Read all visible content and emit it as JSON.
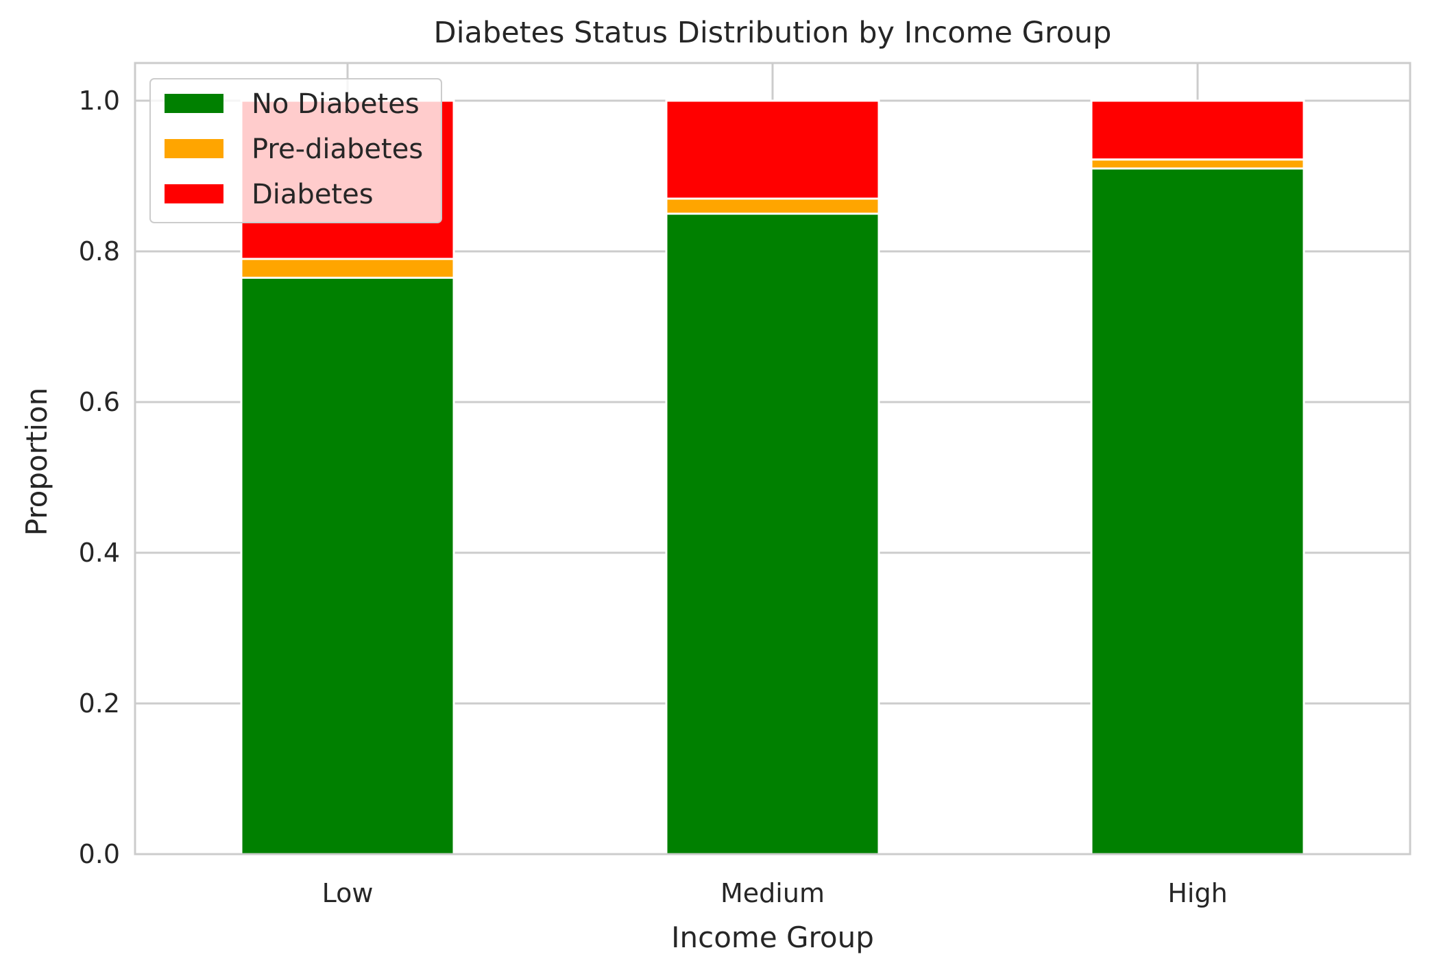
{
  "chart_data": {
    "type": "bar",
    "stacked": true,
    "title": "Diabetes Status Distribution by Income Group",
    "xlabel": "Income Group",
    "ylabel": "Proportion",
    "categories": [
      "Low",
      "Medium",
      "High"
    ],
    "ylim": [
      0,
      1.05
    ],
    "yticks": [
      "0.0",
      "0.2",
      "0.4",
      "0.6",
      "0.8",
      "1.0"
    ],
    "grid": true,
    "legend_position": "top-left",
    "series": [
      {
        "name": "No Diabetes",
        "color": "#008000",
        "values": [
          0.765,
          0.85,
          0.91
        ]
      },
      {
        "name": "Pre-diabetes",
        "color": "#FFA500",
        "values": [
          0.025,
          0.02,
          0.012
        ]
      },
      {
        "name": "Diabetes",
        "color": "#FF0000",
        "values": [
          0.21,
          0.13,
          0.078
        ]
      }
    ]
  }
}
